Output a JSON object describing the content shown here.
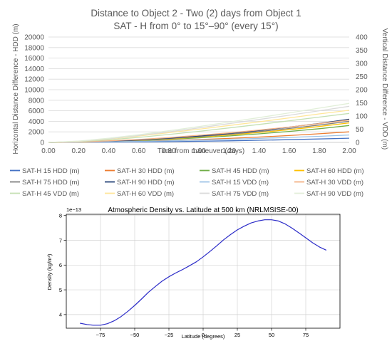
{
  "chart_data": [
    {
      "type": "line",
      "title": "Distance to Object 2 - Two (2) days from Object 1",
      "subtitle": "SAT - H from 0° to 15°–90° (every 15°)",
      "xlabel": "Time from maneuver (days)",
      "ylabel": "Horizontal Distance Difference - HDD (m)",
      "y2label": "Vertical Distance Difference - VDD (m)",
      "xlim": [
        0,
        2
      ],
      "ylim": [
        0,
        20000
      ],
      "y2lim": [
        0,
        400
      ],
      "x_ticks": [
        "0.00",
        "0.20",
        "0.40",
        "0.60",
        "0.80",
        "1.00",
        "1.20",
        "1.40",
        "1.60",
        "1.80",
        "2.00"
      ],
      "y_ticks": [
        "0",
        "2000",
        "4000",
        "6000",
        "8000",
        "10000",
        "12000",
        "14000",
        "16000",
        "18000",
        "20000"
      ],
      "y2_ticks": [
        "0",
        "50",
        "100",
        "150",
        "200",
        "250",
        "300",
        "350",
        "400"
      ],
      "grid": "horizontal",
      "legend_position": "bottom",
      "x": [
        0,
        0.2,
        0.4,
        0.6,
        0.8,
        1.0,
        1.2,
        1.4,
        1.6,
        1.8,
        2.0
      ],
      "series": [
        {
          "name": "SAT-H 15 HDD (m)",
          "axis": "left",
          "color": "#4472c4",
          "values": [
            0,
            10,
            40,
            80,
            140,
            210,
            300,
            400,
            520,
            650,
            800
          ]
        },
        {
          "name": "SAT-H 30 HDD (m)",
          "axis": "left",
          "color": "#ed7d31",
          "values": [
            0,
            25,
            100,
            210,
            360,
            540,
            760,
            1010,
            1300,
            1630,
            2000
          ]
        },
        {
          "name": "SAT-H 45 HDD (m)",
          "axis": "left",
          "color": "#70ad47",
          "values": [
            0,
            40,
            160,
            340,
            580,
            870,
            1220,
            1620,
            2080,
            2600,
            3200
          ]
        },
        {
          "name": "SAT-H 60 HDD (m)",
          "axis": "left",
          "color": "#ffc000",
          "values": [
            0,
            45,
            180,
            390,
            670,
            1010,
            1410,
            1880,
            2410,
            3020,
            3700
          ]
        },
        {
          "name": "SAT-H 75 HDD (m)",
          "axis": "left",
          "color": "#7f7f7f",
          "values": [
            0,
            50,
            200,
            430,
            730,
            1100,
            1540,
            2050,
            2630,
            3280,
            4000
          ]
        },
        {
          "name": "SAT-H 90 HDD (m)",
          "axis": "left",
          "color": "#264478",
          "values": [
            0,
            55,
            215,
            470,
            800,
            1200,
            1690,
            2240,
            2880,
            3590,
            4400
          ]
        },
        {
          "name": "SAT-H  15 VDD (m)",
          "axis": "right",
          "color": "#9dc3e6",
          "values": [
            0,
            1,
            2,
            4,
            6,
            9,
            12,
            15,
            19,
            23,
            28
          ]
        },
        {
          "name": "SAT-H 30 VDD (m)",
          "axis": "right",
          "color": "#f4b183",
          "values": [
            0,
            2,
            6,
            11,
            18,
            27,
            36,
            47,
            58,
            71,
            85
          ]
        },
        {
          "name": "SAT-H 45 VDD (m)",
          "axis": "right",
          "color": "#c5e0b4",
          "values": [
            0,
            3,
            10,
            19,
            30,
            42,
            55,
            68,
            82,
            96,
            110
          ]
        },
        {
          "name": "SAT-H 60 VDD (m)",
          "axis": "right",
          "color": "#ffe699",
          "values": [
            0,
            4,
            13,
            24,
            37,
            50,
            64,
            78,
            93,
            108,
            122
          ]
        },
        {
          "name": "SAT-H 75 VDD (m)",
          "axis": "right",
          "color": "#dbdbdb",
          "values": [
            0,
            4,
            14,
            26,
            40,
            55,
            71,
            87,
            103,
            120,
            137
          ]
        },
        {
          "name": "SAT-H 90 VDD (m)",
          "axis": "right",
          "color": "#e2efd9",
          "values": [
            0,
            5,
            16,
            29,
            44,
            60,
            77,
            94,
            112,
            130,
            148
          ]
        }
      ]
    },
    {
      "type": "line",
      "title": "Atmospheric Density vs. Latitude at 500 km (NRLMSISE-00)",
      "xlabel": "Latitude (degrees)",
      "ylabel": "Density (kg/m³)",
      "y_multiplier": "1e−13",
      "xlim": [
        -100,
        100
      ],
      "ylim": [
        3.45,
        8.05
      ],
      "x_ticks": [
        "−75",
        "−50",
        "−25",
        "0",
        "25",
        "50",
        "75"
      ],
      "y_ticks": [
        "4",
        "5",
        "6",
        "7",
        "8"
      ],
      "grid": "both",
      "color": "#2c2cc8",
      "x": [
        -90,
        -85,
        -80,
        -75,
        -70,
        -65,
        -60,
        -55,
        -50,
        -45,
        -40,
        -35,
        -30,
        -25,
        -20,
        -15,
        -10,
        -5,
        0,
        5,
        10,
        15,
        20,
        25,
        30,
        35,
        40,
        45,
        50,
        55,
        60,
        65,
        70,
        75,
        80,
        85,
        90
      ],
      "values": [
        3.65,
        3.6,
        3.57,
        3.57,
        3.63,
        3.75,
        3.92,
        4.13,
        4.37,
        4.63,
        4.9,
        5.13,
        5.35,
        5.53,
        5.68,
        5.82,
        5.97,
        6.13,
        6.33,
        6.55,
        6.78,
        7.02,
        7.23,
        7.42,
        7.57,
        7.7,
        7.78,
        7.83,
        7.83,
        7.78,
        7.66,
        7.49,
        7.3,
        7.1,
        6.9,
        6.73,
        6.6
      ]
    }
  ]
}
